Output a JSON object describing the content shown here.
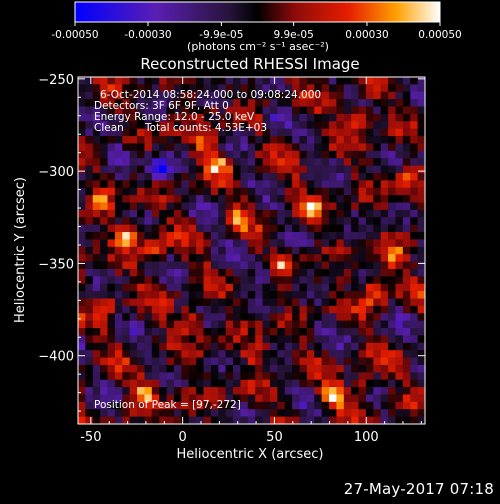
{
  "colorbar": {
    "tick_labels": [
      "-0.00050",
      "-0.00030",
      "-9.9e-05",
      "9.9e-05",
      "0.00030",
      "0.00050"
    ],
    "tick_values": [
      -0.0005,
      -0.0003,
      -9.9e-05,
      9.9e-05,
      0.0003,
      0.0005
    ],
    "range": [
      -0.0005,
      0.0005
    ],
    "units_label": "(photons cm⁻² s⁻¹ asec⁻²)",
    "colormap": "blue-purple-black-red-yellow-white"
  },
  "chart_data": {
    "type": "heatmap",
    "title": "Reconstructed RHESSI Image",
    "xlabel": "Heliocentric X (arcsec)",
    "ylabel": "Heliocentric Y (arcsec)",
    "xlim": [
      -57,
      132
    ],
    "ylim": [
      -437,
      -249
    ],
    "xticks": [
      -50,
      0,
      50,
      100
    ],
    "yticks": [
      -250,
      -300,
      -350,
      -400
    ],
    "annotations": [
      "6-Oct-2014 08:58:24.000 to 09:08:24.000",
      "Detectors: 3F 6F 9F, Att 0",
      "Energy Range: 12.0 - 25.0 keV",
      "Clean",
      "Total counts: 4.53E+03",
      "Position of Peak = [97,-272]"
    ],
    "peak": [
      97,
      -272
    ],
    "bright_spots": [
      {
        "x": 97,
        "y": -272,
        "v": 1.0
      },
      {
        "x": -30,
        "y": -335,
        "v": 0.85
      },
      {
        "x": -15,
        "y": -342,
        "v": 0.8
      },
      {
        "x": 12,
        "y": -285,
        "v": 0.7
      },
      {
        "x": 20,
        "y": -296,
        "v": 0.65
      },
      {
        "x": 55,
        "y": -350,
        "v": 0.65
      },
      {
        "x": 105,
        "y": -366,
        "v": 0.8
      },
      {
        "x": 115,
        "y": -347,
        "v": 0.6
      },
      {
        "x": -20,
        "y": -420,
        "v": 0.75
      },
      {
        "x": 82,
        "y": -422,
        "v": 0.75
      },
      {
        "x": 100,
        "y": -415,
        "v": 0.6
      },
      {
        "x": 5,
        "y": -380,
        "v": 0.6
      },
      {
        "x": 40,
        "y": -400,
        "v": 0.55
      },
      {
        "x": 70,
        "y": -320,
        "v": 0.55
      },
      {
        "x": -45,
        "y": -315,
        "v": 0.55
      },
      {
        "x": 30,
        "y": -325,
        "v": 0.5
      },
      {
        "x": 120,
        "y": -305,
        "v": 0.5
      },
      {
        "x": -40,
        "y": -370,
        "v": 0.5
      }
    ],
    "dark_spots": [
      {
        "x": -12,
        "y": -300,
        "v": -0.85
      },
      {
        "x": 50,
        "y": -270,
        "v": -0.45
      },
      {
        "x": 45,
        "y": -355,
        "v": -0.4
      },
      {
        "x": -35,
        "y": -290,
        "v": -0.4
      },
      {
        "x": 75,
        "y": -385,
        "v": -0.35
      }
    ]
  },
  "footer": {
    "timestamp": "27-May-2017 07:18"
  }
}
